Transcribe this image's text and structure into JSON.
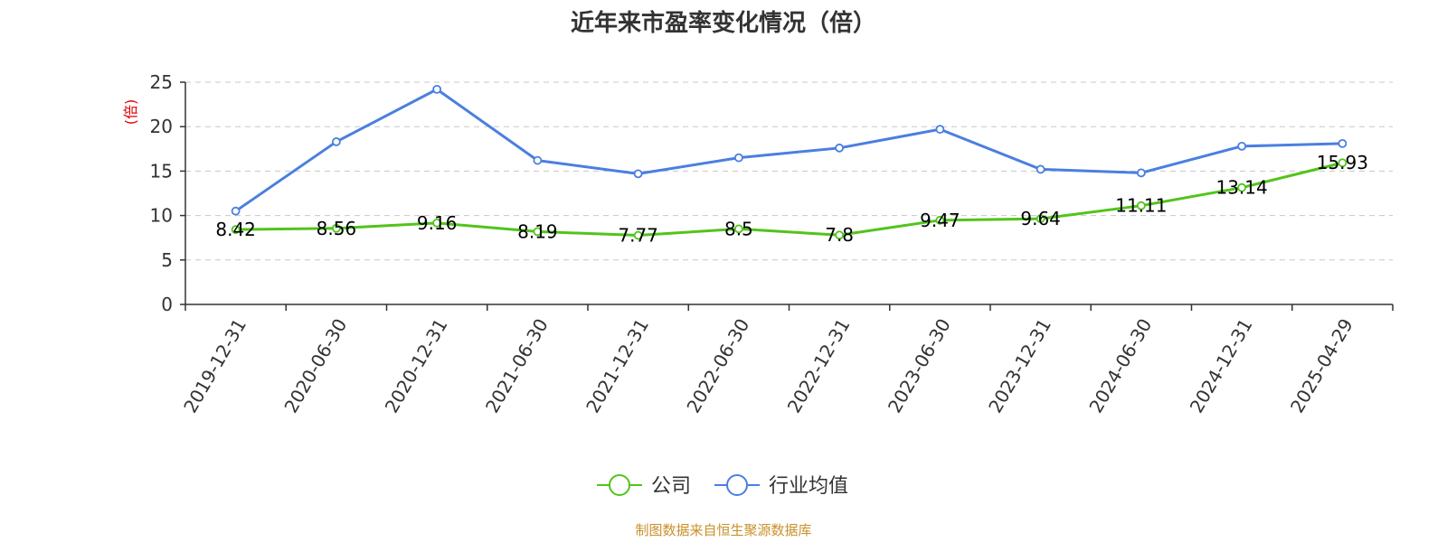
{
  "chart_data": {
    "type": "line",
    "title": "近年来市盈率变化情况（倍）",
    "ylabel": "(倍)",
    "ylim": [
      0,
      25
    ],
    "yticks": [
      "0",
      "5",
      "10",
      "15",
      "20",
      "25"
    ],
    "grid": true,
    "legend_position": "bottom",
    "categories": [
      "2019-12-31",
      "2020-06-30",
      "2020-12-31",
      "2021-06-30",
      "2021-12-31",
      "2022-06-30",
      "2022-12-31",
      "2023-06-30",
      "2023-12-31",
      "2024-06-30",
      "2024-12-31",
      "2025-04-29"
    ],
    "series": [
      {
        "name": "公司",
        "color": "#52c41a",
        "values": [
          8.42,
          8.56,
          9.16,
          8.19,
          7.77,
          8.5,
          7.8,
          9.47,
          9.64,
          11.11,
          13.14,
          15.93
        ],
        "labels": [
          "8.42",
          "8.56",
          "9.16",
          "8.19",
          "7.77",
          "8.5",
          "7.8",
          "9.47",
          "9.64",
          "11.11",
          "13.14",
          "15.93"
        ]
      },
      {
        "name": "行业均值",
        "color": "#4a7fe0",
        "values": [
          10.5,
          18.3,
          24.2,
          16.2,
          14.7,
          16.5,
          17.6,
          19.7,
          15.2,
          14.8,
          17.8,
          18.1
        ]
      }
    ]
  },
  "footer": {
    "source": "制图数据来自恒生聚源数据库"
  }
}
